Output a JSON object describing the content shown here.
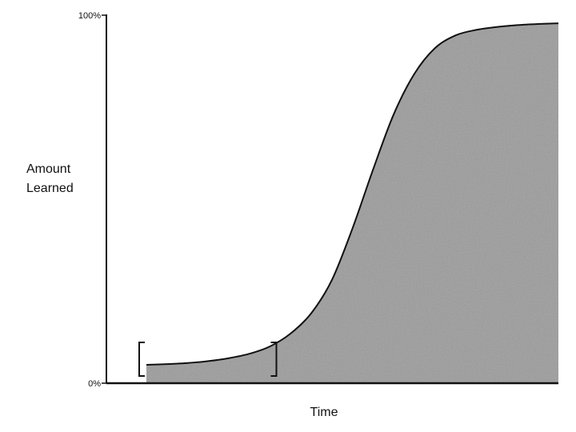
{
  "chart_data": {
    "type": "area",
    "xlabel": "Time",
    "ylabel": [
      "Amount",
      "Learned"
    ],
    "y_tick_labels": [
      "100%",
      "0%"
    ],
    "ylim": [
      0,
      100
    ],
    "xlim": [
      0,
      100
    ],
    "x": [
      0,
      5,
      10,
      15,
      20,
      25,
      30,
      35,
      40,
      45,
      50,
      55,
      60,
      65,
      70,
      75,
      80,
      85,
      90,
      95,
      100
    ],
    "values": [
      5,
      5.2,
      5.5,
      6,
      6.8,
      8,
      10,
      13.5,
      19,
      28,
      42,
      58,
      73,
      84,
      91,
      94.5,
      96,
      96.8,
      97.3,
      97.6,
      97.8
    ],
    "series": [
      {
        "name": "",
        "values": [
          5,
          5.2,
          5.5,
          6,
          6.8,
          8,
          10,
          13.5,
          19,
          28,
          42,
          58,
          73,
          84,
          91,
          94.5,
          96,
          96.8,
          97.3,
          97.6,
          97.8
        ]
      }
    ],
    "highlight_bracket_x": [
      0,
      30
    ],
    "grid": false,
    "legend": "none",
    "colors": {
      "fill": "#9a9a9a",
      "line": "#111111",
      "background": "#ffffff"
    }
  }
}
